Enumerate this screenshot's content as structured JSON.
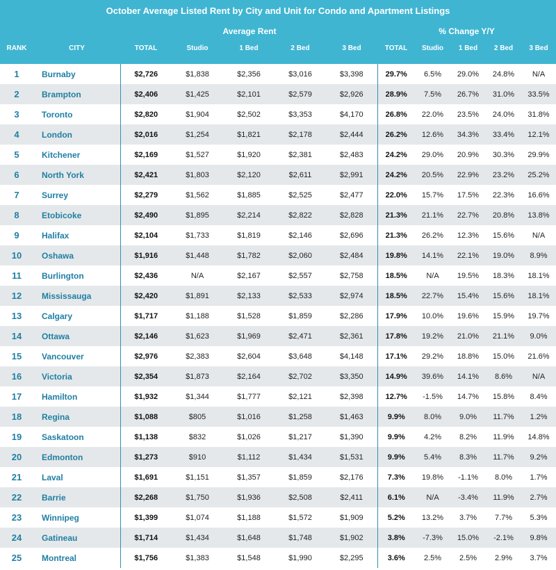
{
  "title": "October Average Listed Rent by City and Unit for Condo and Apartment Listings",
  "groups": {
    "average_rent": "Average Rent",
    "pct_change": "% Change Y/Y"
  },
  "columns": [
    "RANK",
    "CITY",
    "TOTAL",
    "Studio",
    "1 Bed",
    "2 Bed",
    "3 Bed",
    "TOTAL",
    "Studio",
    "1 Bed",
    "2 Bed",
    "3 Bed"
  ],
  "rows": [
    [
      "1",
      "Burnaby",
      "$2,726",
      "$1,838",
      "$2,356",
      "$3,016",
      "$3,398",
      "29.7%",
      "6.5%",
      "29.0%",
      "24.8%",
      "N/A"
    ],
    [
      "2",
      "Brampton",
      "$2,406",
      "$1,425",
      "$2,101",
      "$2,579",
      "$2,926",
      "28.9%",
      "7.5%",
      "26.7%",
      "31.0%",
      "33.5%"
    ],
    [
      "3",
      "Toronto",
      "$2,820",
      "$1,904",
      "$2,502",
      "$3,353",
      "$4,170",
      "26.8%",
      "22.0%",
      "23.5%",
      "24.0%",
      "31.8%"
    ],
    [
      "4",
      "London",
      "$2,016",
      "$1,254",
      "$1,821",
      "$2,178",
      "$2,444",
      "26.2%",
      "12.6%",
      "34.3%",
      "33.4%",
      "12.1%"
    ],
    [
      "5",
      "Kitchener",
      "$2,169",
      "$1,527",
      "$1,920",
      "$2,381",
      "$2,483",
      "24.2%",
      "29.0%",
      "20.9%",
      "30.3%",
      "29.9%"
    ],
    [
      "6",
      "North York",
      "$2,421",
      "$1,803",
      "$2,120",
      "$2,611",
      "$2,991",
      "24.2%",
      "20.5%",
      "22.9%",
      "23.2%",
      "25.2%"
    ],
    [
      "7",
      "Surrey",
      "$2,279",
      "$1,562",
      "$1,885",
      "$2,525",
      "$2,477",
      "22.0%",
      "15.7%",
      "17.5%",
      "22.3%",
      "16.6%"
    ],
    [
      "8",
      "Etobicoke",
      "$2,490",
      "$1,895",
      "$2,214",
      "$2,822",
      "$2,828",
      "21.3%",
      "21.1%",
      "22.7%",
      "20.8%",
      "13.8%"
    ],
    [
      "9",
      "Halifax",
      "$2,104",
      "$1,733",
      "$1,819",
      "$2,146",
      "$2,696",
      "21.3%",
      "26.2%",
      "12.3%",
      "15.6%",
      "N/A"
    ],
    [
      "10",
      "Oshawa",
      "$1,916",
      "$1,448",
      "$1,782",
      "$2,060",
      "$2,484",
      "19.8%",
      "14.1%",
      "22.1%",
      "19.0%",
      "8.9%"
    ],
    [
      "11",
      "Burlington",
      "$2,436",
      "N/A",
      "$2,167",
      "$2,557",
      "$2,758",
      "18.5%",
      "N/A",
      "19.5%",
      "18.3%",
      "18.1%"
    ],
    [
      "12",
      "Mississauga",
      "$2,420",
      "$1,891",
      "$2,133",
      "$2,533",
      "$2,974",
      "18.5%",
      "22.7%",
      "15.4%",
      "15.6%",
      "18.1%"
    ],
    [
      "13",
      "Calgary",
      "$1,717",
      "$1,188",
      "$1,528",
      "$1,859",
      "$2,286",
      "17.9%",
      "10.0%",
      "19.6%",
      "15.9%",
      "19.7%"
    ],
    [
      "14",
      "Ottawa",
      "$2,146",
      "$1,623",
      "$1,969",
      "$2,471",
      "$2,361",
      "17.8%",
      "19.2%",
      "21.0%",
      "21.1%",
      "9.0%"
    ],
    [
      "15",
      "Vancouver",
      "$2,976",
      "$2,383",
      "$2,604",
      "$3,648",
      "$4,148",
      "17.1%",
      "29.2%",
      "18.8%",
      "15.0%",
      "21.6%"
    ],
    [
      "16",
      "Victoria",
      "$2,354",
      "$1,873",
      "$2,164",
      "$2,702",
      "$3,350",
      "14.9%",
      "39.6%",
      "14.1%",
      "8.6%",
      "N/A"
    ],
    [
      "17",
      "Hamilton",
      "$1,932",
      "$1,344",
      "$1,777",
      "$2,121",
      "$2,398",
      "12.7%",
      "-1.5%",
      "14.7%",
      "15.8%",
      "8.4%"
    ],
    [
      "18",
      "Regina",
      "$1,088",
      "$805",
      "$1,016",
      "$1,258",
      "$1,463",
      "9.9%",
      "8.0%",
      "9.0%",
      "11.7%",
      "1.2%"
    ],
    [
      "19",
      "Saskatoon",
      "$1,138",
      "$832",
      "$1,026",
      "$1,217",
      "$1,390",
      "9.9%",
      "4.2%",
      "8.2%",
      "11.9%",
      "14.8%"
    ],
    [
      "20",
      "Edmonton",
      "$1,273",
      "$910",
      "$1,112",
      "$1,434",
      "$1,531",
      "9.9%",
      "5.4%",
      "8.3%",
      "11.7%",
      "9.2%"
    ],
    [
      "21",
      "Laval",
      "$1,691",
      "$1,151",
      "$1,357",
      "$1,859",
      "$2,176",
      "7.3%",
      "19.8%",
      "-1.1%",
      "8.0%",
      "1.7%"
    ],
    [
      "22",
      "Barrie",
      "$2,268",
      "$1,750",
      "$1,936",
      "$2,508",
      "$2,411",
      "6.1%",
      "N/A",
      "-3.4%",
      "11.9%",
      "2.7%"
    ],
    [
      "23",
      "Winnipeg",
      "$1,399",
      "$1,074",
      "$1,188",
      "$1,572",
      "$1,909",
      "5.2%",
      "13.2%",
      "3.7%",
      "7.7%",
      "5.3%"
    ],
    [
      "24",
      "Gatineau",
      "$1,714",
      "$1,434",
      "$1,648",
      "$1,748",
      "$1,902",
      "3.8%",
      "-7.3%",
      "15.0%",
      "-2.1%",
      "9.8%"
    ],
    [
      "25",
      "Montreal",
      "$1,756",
      "$1,383",
      "$1,548",
      "$1,990",
      "$2,295",
      "3.6%",
      "2.5%",
      "2.5%",
      "2.9%",
      "3.7%"
    ]
  ]
}
